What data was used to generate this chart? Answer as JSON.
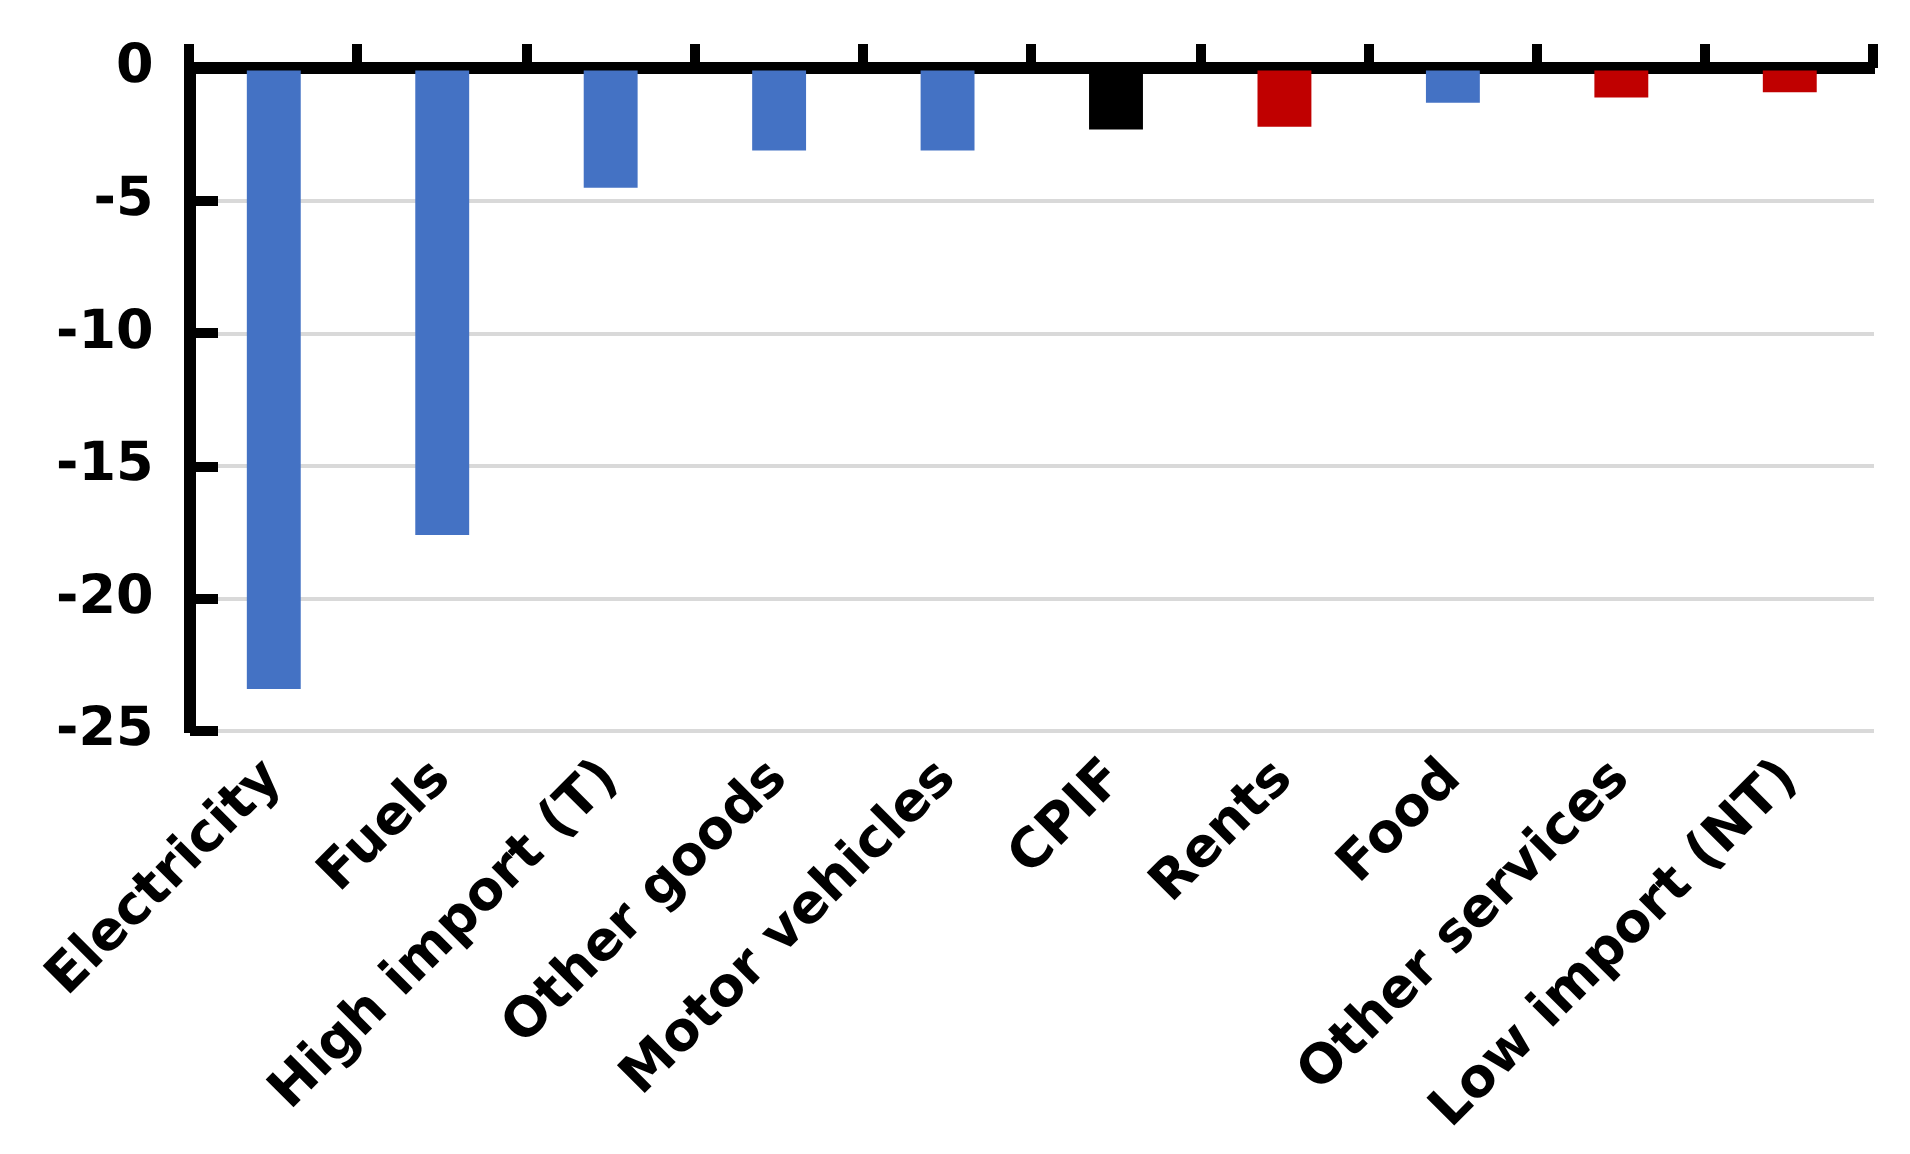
{
  "chart_data": {
    "type": "bar",
    "categories": [
      "Electricity",
      "Fuels",
      "High import (T)",
      "Other goods",
      "Motor vehicles",
      "CPIF",
      "Rents",
      "Food",
      "Other services",
      "Low import (NT)"
    ],
    "values": [
      -23.4,
      -17.6,
      -4.5,
      -3.1,
      -3.1,
      -2.3,
      -2.2,
      -1.3,
      -1.1,
      -0.9
    ],
    "colors": [
      "#4472c4",
      "#4472c4",
      "#4472c4",
      "#4472c4",
      "#4472c4",
      "#000000",
      "#c00000",
      "#4472c4",
      "#c00000",
      "#c00000"
    ],
    "ylim": [
      -25,
      0
    ],
    "yticks": [
      0,
      -5,
      -10,
      -15,
      -20,
      -25
    ],
    "grid": "y"
  }
}
